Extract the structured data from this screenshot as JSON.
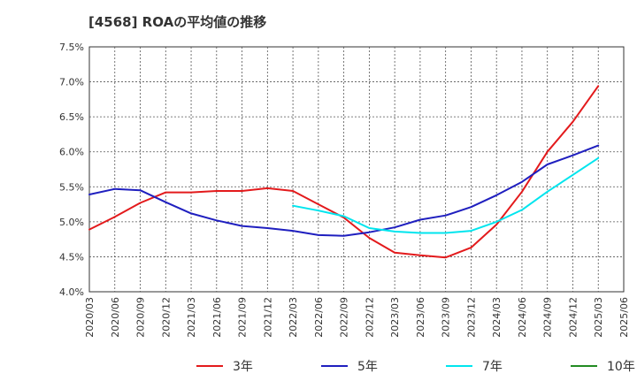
{
  "title": "[4568]  ROAの平均値の推移",
  "chart_data": {
    "type": "line",
    "title": "[4568]  ROAの平均値の推移",
    "x": [
      "2020/03",
      "2020/06",
      "2020/09",
      "2020/12",
      "2021/03",
      "2021/06",
      "2021/09",
      "2021/12",
      "2022/03",
      "2022/06",
      "2022/09",
      "2022/12",
      "2023/03",
      "2023/06",
      "2023/09",
      "2023/12",
      "2024/03",
      "2024/06",
      "2024/09",
      "2024/12",
      "2025/03",
      "2025/06"
    ],
    "ylim": [
      4.0,
      7.5
    ],
    "yticks": [
      "7.5%",
      "7.0%",
      "6.5%",
      "6.0%",
      "5.5%",
      "5.0%",
      "4.5%",
      "4.0%"
    ],
    "ytick_values": [
      7.5,
      7.0,
      6.5,
      6.0,
      5.5,
      5.0,
      4.5,
      4.0
    ],
    "grid": true,
    "legend_position": "bottom",
    "series": [
      {
        "name": "3年",
        "color": "#e31a1c",
        "values": [
          4.89,
          5.07,
          5.27,
          5.42,
          5.42,
          5.44,
          5.44,
          5.48,
          5.44,
          5.25,
          5.06,
          4.77,
          4.56,
          4.52,
          4.49,
          4.63,
          4.96,
          5.43,
          6.0,
          6.43,
          6.94,
          null
        ]
      },
      {
        "name": "5年",
        "color": "#1f1fbf",
        "values": [
          5.39,
          5.47,
          5.45,
          5.28,
          5.12,
          5.02,
          4.94,
          4.91,
          4.87,
          4.81,
          4.8,
          4.85,
          4.92,
          5.03,
          5.09,
          5.21,
          5.38,
          5.57,
          5.82,
          5.95,
          6.09,
          null
        ]
      },
      {
        "name": "7年",
        "color": "#00e5ee",
        "values": [
          null,
          null,
          null,
          null,
          null,
          null,
          null,
          null,
          5.23,
          5.16,
          5.08,
          4.91,
          4.86,
          4.84,
          4.84,
          4.87,
          5.0,
          5.17,
          5.43,
          5.67,
          5.91,
          null
        ]
      },
      {
        "name": "10年",
        "color": "#228b22",
        "values": [
          null,
          null,
          null,
          null,
          null,
          null,
          null,
          null,
          null,
          null,
          null,
          null,
          null,
          null,
          null,
          null,
          null,
          null,
          null,
          null,
          null,
          null
        ]
      }
    ]
  }
}
